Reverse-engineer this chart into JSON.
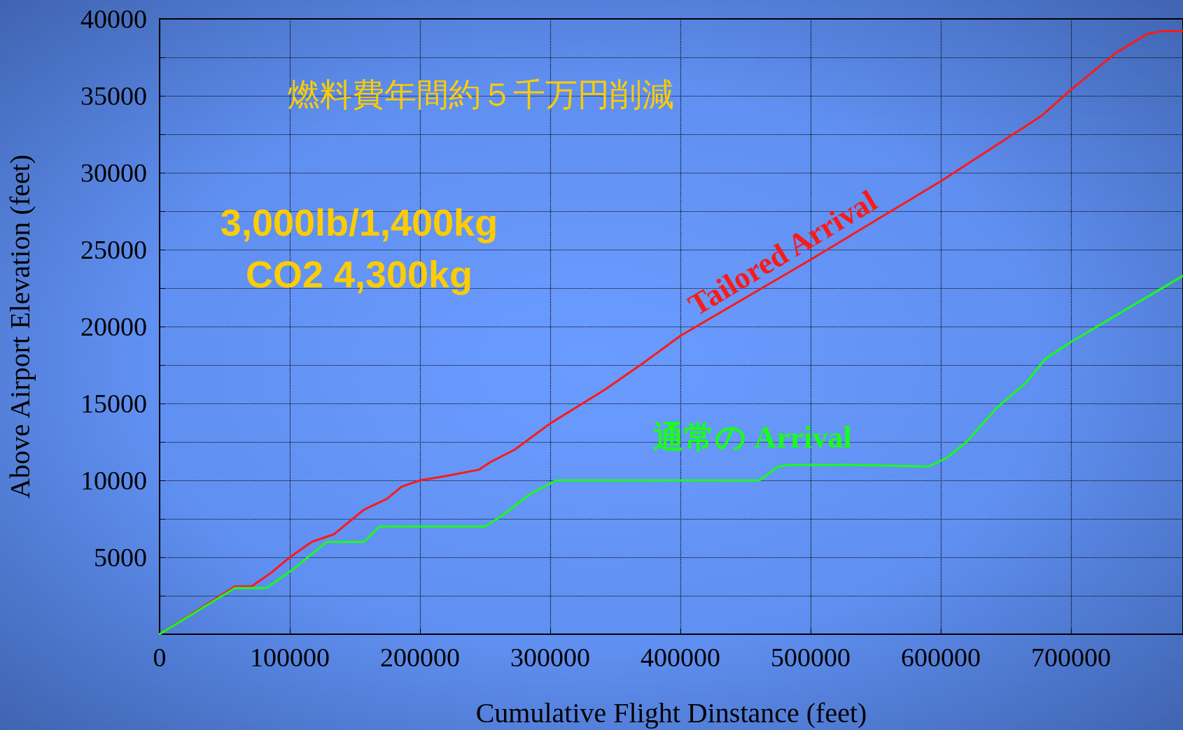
{
  "chart_data": {
    "type": "line",
    "xlabel": "Cumulative Flight Dinstance (feet)",
    "ylabel": "Above Airport Elevation (feet)",
    "annotations": [
      "燃料費年間約５千万円削減",
      "3,000lb/1,400kg",
      "CO2 4,300kg"
    ],
    "series": [
      {
        "name": "Tailored Arrival",
        "color": "#ff1a1a",
        "x": [
          0,
          57800,
          70500,
          85000,
          100000,
          116800,
          134000,
          157000,
          174600,
          186000,
          200000,
          220800,
          245500,
          254300,
          272800,
          300000,
          342000,
          371000,
          400000,
          501000,
          601000,
          677500,
          700000,
          734700,
          758000,
          770000,
          786000
        ],
        "values": [
          0,
          3100,
          3100,
          3950,
          5000,
          6000,
          6500,
          8100,
          8800,
          9600,
          10000,
          10300,
          10700,
          11200,
          12000,
          13700,
          15900,
          17600,
          19400,
          24400,
          29500,
          33700,
          35400,
          37800,
          39000,
          39200,
          39200
        ]
      },
      {
        "name": "通常の Arrival",
        "color": "#1aff1a",
        "x": [
          0,
          57800,
          82000,
          102300,
          116800,
          128300,
          157000,
          168800,
          186000,
          249700,
          261300,
          284400,
          304600,
          460700,
          475100,
          483800,
          532900,
          590800,
          605200,
          619700,
          642800,
          666000,
          680300,
          700000,
          786000
        ],
        "values": [
          0,
          3000,
          3000,
          4200,
          5200,
          6000,
          6000,
          7000,
          7000,
          7000,
          7600,
          9100,
          10000,
          10000,
          10900,
          11000,
          11000,
          10900,
          11500,
          12500,
          14700,
          16400,
          17900,
          19000,
          23300
        ]
      }
    ],
    "xlim": [
      0,
      786000
    ],
    "xticks": [
      0,
      100000,
      200000,
      300000,
      400000,
      500000,
      600000,
      700000
    ],
    "ylim": [
      0,
      40000
    ],
    "yticks": [
      {
        "value": 0,
        "label": null
      },
      {
        "value": 2500,
        "label": null
      },
      5000,
      {
        "value": 7500,
        "label": null
      },
      10000,
      {
        "value": 12500,
        "label": null
      },
      15000,
      {
        "value": 17500,
        "label": null
      },
      20000,
      {
        "value": 22500,
        "label": null
      },
      25000,
      {
        "value": 27500,
        "label": null
      },
      30000,
      {
        "value": 32500,
        "label": null
      },
      35000,
      {
        "value": 37500,
        "label": null
      },
      40000
    ],
    "grid": true,
    "legend": false,
    "marker": "none",
    "line_style": "solid"
  }
}
